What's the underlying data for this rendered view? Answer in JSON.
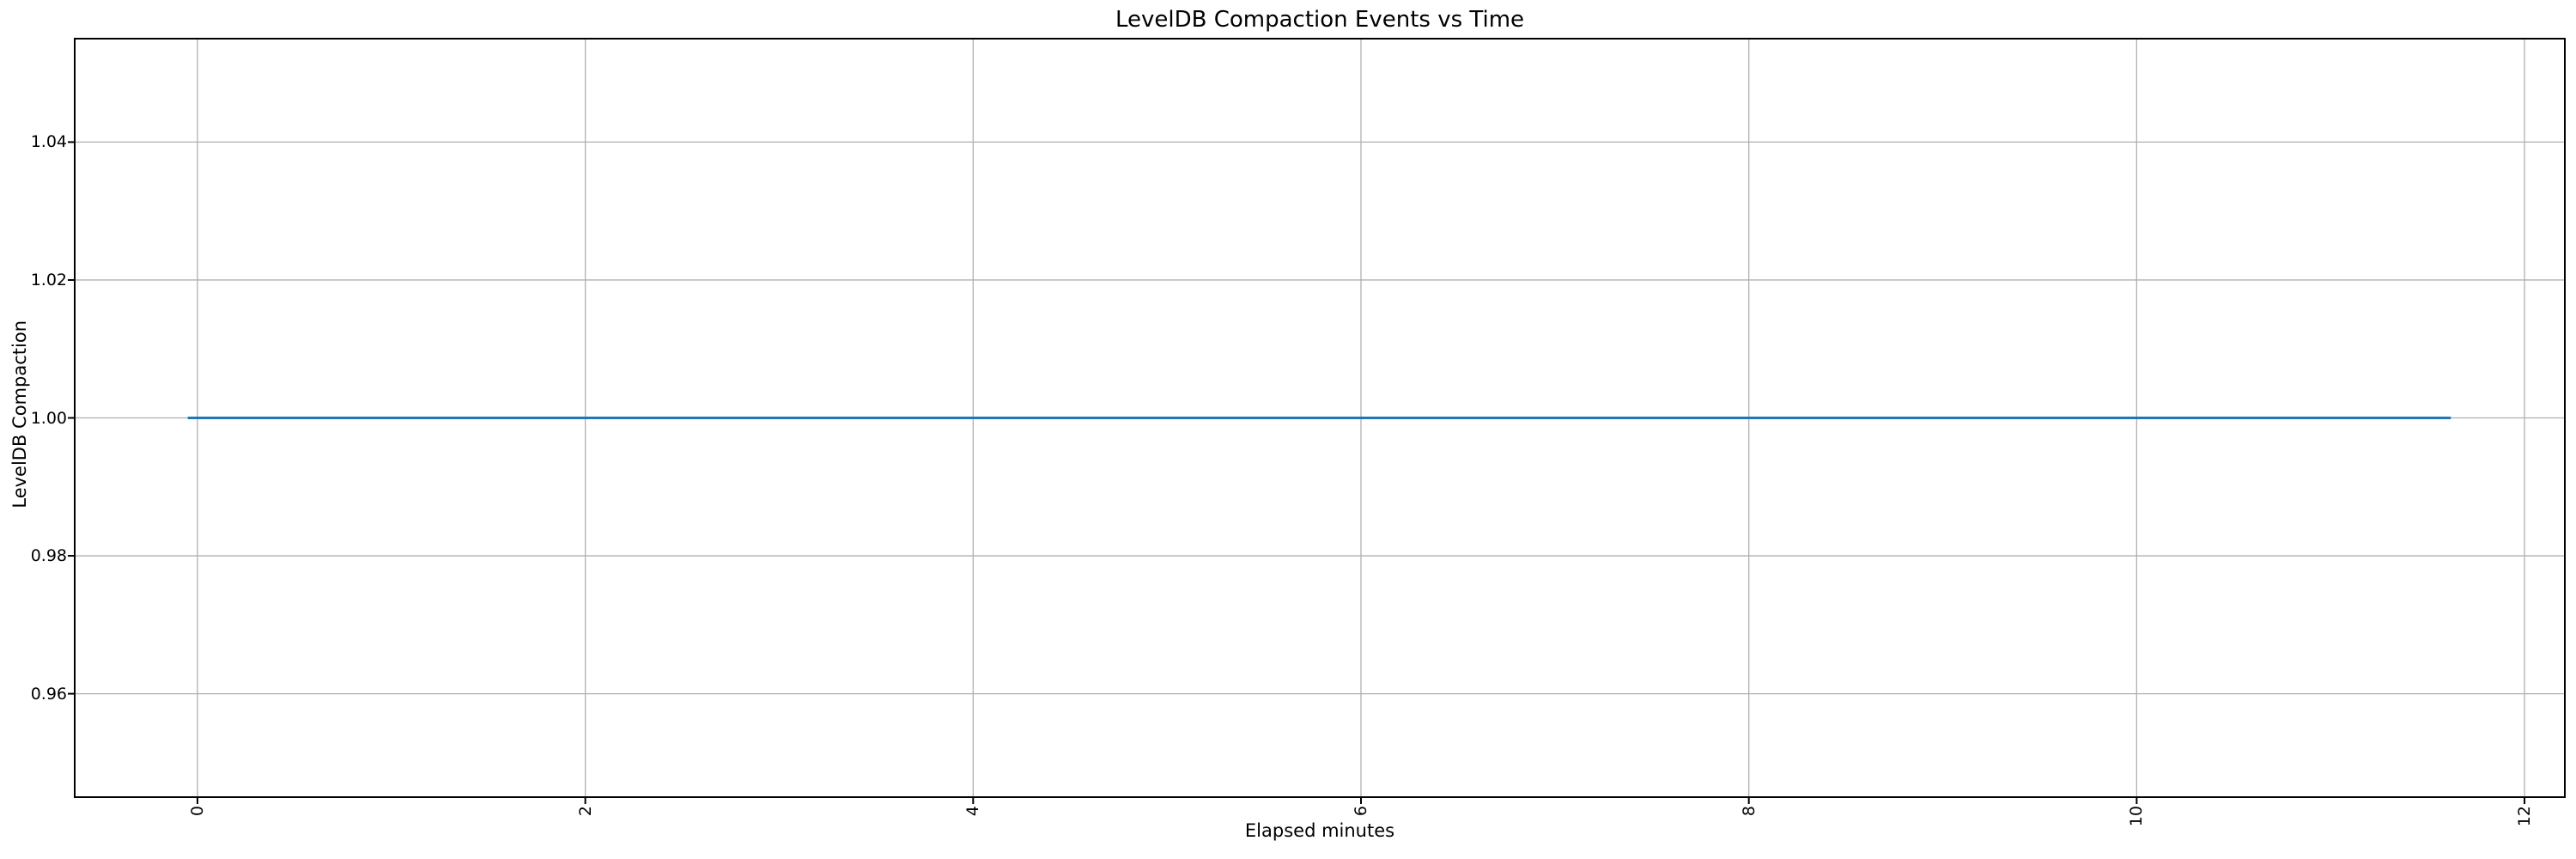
{
  "chart_data": {
    "type": "line",
    "title": "LevelDB Compaction Events vs Time",
    "xlabel": "Elapsed minutes",
    "ylabel": "LevelDB Compaction",
    "xlim": [
      -0.633,
      12.208
    ],
    "ylim": [
      0.945,
      1.055
    ],
    "xticks": [
      0,
      2,
      4,
      6,
      8,
      10,
      12
    ],
    "xtick_labels": [
      "0",
      "2",
      "4",
      "6",
      "8",
      "10",
      "12"
    ],
    "yticks": [
      0.96,
      0.98,
      1.0,
      1.02,
      1.04
    ],
    "ytick_labels": [
      "0.96",
      "0.98",
      "1.00",
      "1.02",
      "1.04"
    ],
    "grid": true,
    "legend": false,
    "xtick_rotation": 90,
    "series": [
      {
        "name": "LevelDB Compaction",
        "x": [
          -0.05,
          11.62
        ],
        "y": [
          1.0,
          1.0
        ],
        "color": "#1f77b4",
        "note": "constant line at y = 1.00 spanning elapsed time approx 0 to 11.6 minutes"
      }
    ],
    "colors": {
      "line": "#1f77b4",
      "grid": "#b0b0b0",
      "spine": "#000000",
      "text": "#000000",
      "background": "#ffffff"
    }
  }
}
